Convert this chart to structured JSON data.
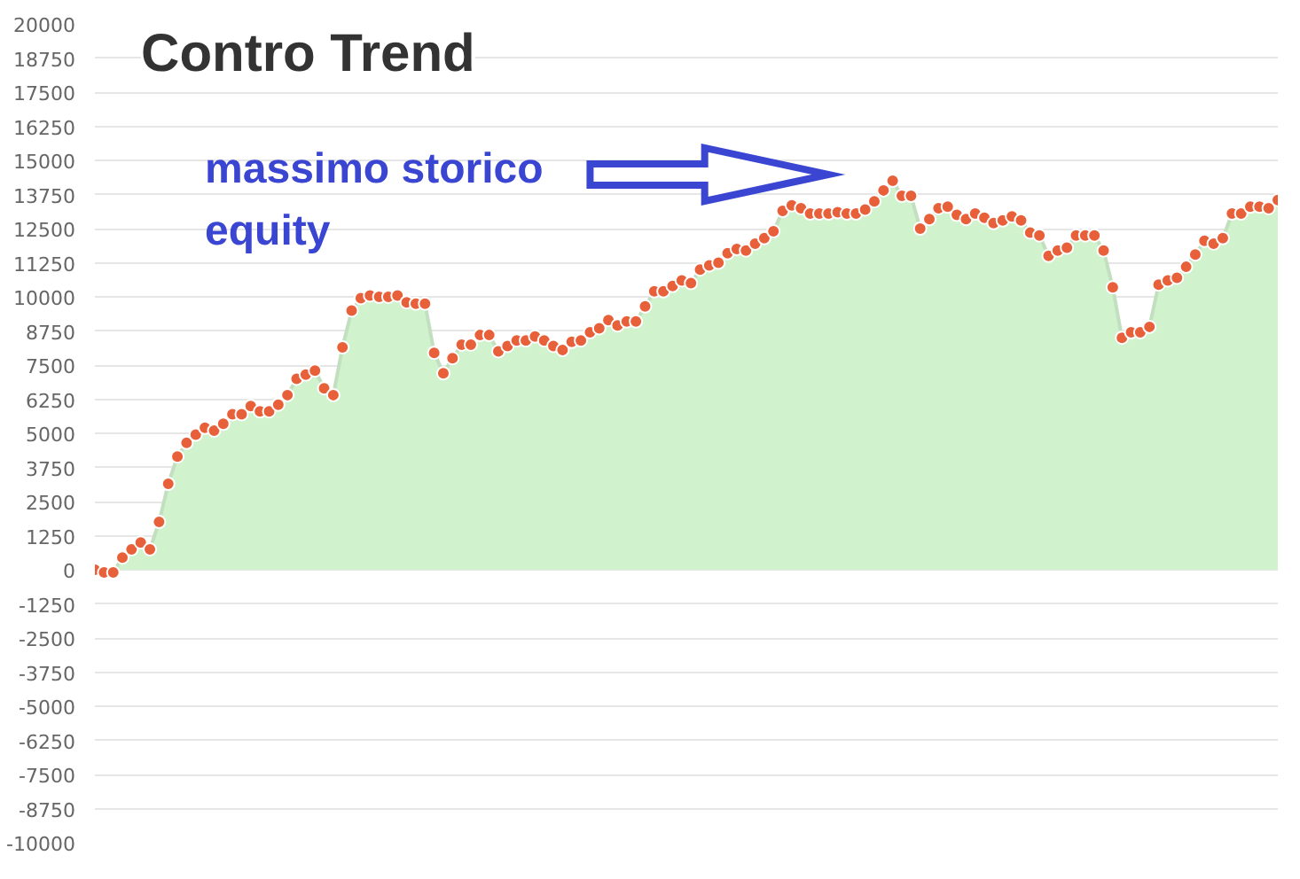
{
  "chart_data": {
    "type": "area",
    "title": "Contro Trend",
    "annotations": [
      "massimo storico\nequity"
    ],
    "categories": [
      null,
      null,
      null,
      null,
      null,
      null,
      null,
      null,
      null,
      null,
      null,
      null,
      null,
      null,
      null,
      null,
      null,
      null,
      null,
      null,
      null,
      null,
      null,
      null,
      null,
      null,
      null,
      null,
      null,
      null,
      null,
      null,
      null,
      null,
      null,
      null,
      null,
      null,
      null,
      null,
      null,
      null,
      null,
      null,
      null,
      null,
      null,
      null,
      null,
      null,
      null,
      null,
      null,
      null,
      null,
      null,
      null,
      null,
      null,
      null,
      null,
      null,
      null,
      null,
      null,
      null,
      null,
      null,
      null,
      null,
      null,
      null,
      null,
      null,
      null,
      null,
      null,
      null,
      null,
      null,
      null,
      null,
      null,
      null,
      null,
      null,
      null,
      null,
      null,
      null,
      null,
      null,
      null,
      null,
      null,
      null,
      null,
      null,
      null,
      null,
      null,
      null,
      null,
      null,
      null,
      null,
      null,
      null,
      null,
      null,
      null,
      null,
      null,
      null,
      null,
      null,
      null,
      null,
      null,
      null,
      null,
      null,
      null,
      null,
      null,
      null,
      null,
      null,
      null,
      null
    ],
    "series": [
      {
        "color": "#e8603a",
        "values": [
          0,
          -100,
          -100,
          450,
          750,
          1000,
          750,
          1750,
          3150,
          4150,
          4650,
          4950,
          5200,
          5100,
          5350,
          5700,
          5700,
          6000,
          5800,
          5800,
          6050,
          6400,
          7000,
          7150,
          7300,
          6650,
          6400,
          8150,
          9500,
          9950,
          10050,
          10000,
          10000,
          10050,
          9800,
          9750,
          9750,
          7950,
          7200,
          7750,
          8250,
          8250,
          8600,
          8600,
          8000,
          8200,
          8400,
          8400,
          8550,
          8400,
          8200,
          8050,
          8350,
          8400,
          8700,
          8850,
          9150,
          8950,
          9100,
          9100,
          9650,
          10200,
          10200,
          10400,
          10600,
          10500,
          11000,
          11150,
          11250,
          11600,
          11750,
          11700,
          11950,
          12150,
          12400,
          13150,
          13350,
          13250,
          13050,
          13050,
          13050,
          13100,
          13050,
          13050,
          13200,
          13500,
          13900,
          14250,
          13700,
          13700,
          12500,
          12850,
          13250,
          13300,
          13000,
          12850,
          13050,
          12900,
          12700,
          12800,
          12950,
          12800,
          12350,
          12250,
          11500,
          11700,
          11800,
          12250,
          12250,
          12250,
          11700,
          10350,
          8500,
          8700,
          8700,
          8900,
          10450,
          10600,
          10700,
          11100,
          11550,
          12050,
          11950,
          12150,
          13050,
          13050,
          13300,
          13300,
          13250,
          13550
        ]
      }
    ],
    "ylim": [
      -10000,
      20000
    ],
    "yticks": [
      -10000,
      -8750,
      -7500,
      -6250,
      -5000,
      -3750,
      -2500,
      -1250,
      0,
      1250,
      2500,
      3750,
      5000,
      6250,
      7500,
      8750,
      10000,
      11250,
      12500,
      13750,
      15000,
      16250,
      17500,
      18750,
      20000
    ],
    "tick_labels": "y",
    "grid": "y",
    "marker": "circle"
  }
}
